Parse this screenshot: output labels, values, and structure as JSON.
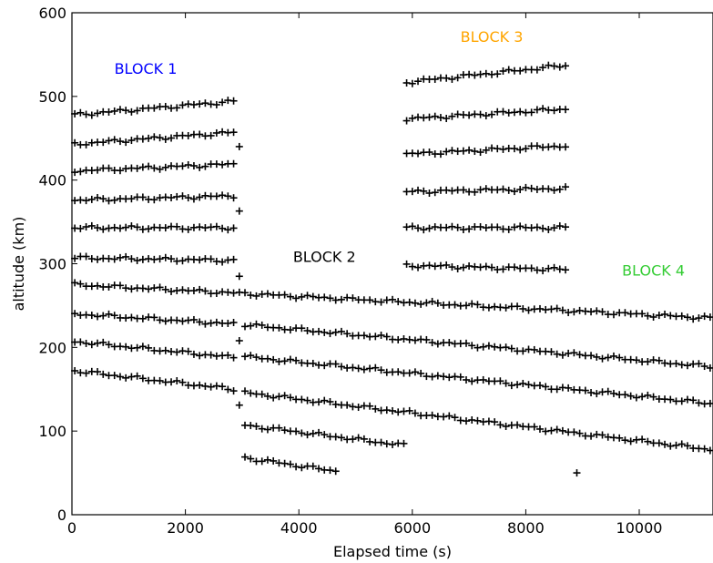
{
  "chart_data": {
    "type": "scatter",
    "title": "",
    "xlabel": "Elapsed time (s)",
    "ylabel": "altitude (km)",
    "xlim": [
      0,
      11300
    ],
    "ylim": [
      0,
      600
    ],
    "x_ticks": [
      0,
      2000,
      4000,
      6000,
      8000,
      10000
    ],
    "x_tick_labels": [
      "0",
      "2000",
      "4000",
      "6000",
      "8000",
      "10000"
    ],
    "y_ticks": [
      0,
      100,
      200,
      300,
      400,
      500,
      600
    ],
    "y_tick_labels": [
      "0",
      "100",
      "200",
      "300",
      "400",
      "500",
      "600"
    ],
    "grid": false,
    "marker": "+",
    "marker_color": "#000000",
    "annotations": [
      {
        "text": "BLOCK 1",
        "x": 1300,
        "y": 527,
        "color": "#0000ff"
      },
      {
        "text": "BLOCK 2",
        "x": 4450,
        "y": 302,
        "color": "#000000"
      },
      {
        "text": "BLOCK 3",
        "x": 7400,
        "y": 565,
        "color": "#ffa500"
      },
      {
        "text": "BLOCK 4",
        "x": 10250,
        "y": 286,
        "color": "#33cc33"
      }
    ],
    "series": [
      {
        "x_start": 50,
        "x_end": 2900,
        "y_start": 478,
        "y_end": 494
      },
      {
        "x_start": 50,
        "x_end": 2900,
        "y_start": 443,
        "y_end": 457
      },
      {
        "x_start": 50,
        "x_end": 2900,
        "y_start": 411,
        "y_end": 419
      },
      {
        "x_start": 50,
        "x_end": 2900,
        "y_start": 376,
        "y_end": 381
      },
      {
        "x_start": 50,
        "x_end": 2900,
        "y_start": 343,
        "y_end": 343
      },
      {
        "x_start": 50,
        "x_end": 2900,
        "y_start": 307,
        "y_end": 304
      },
      {
        "x_start": 50,
        "x_end": 11300,
        "y_start": 275,
        "y_end": 235
      },
      {
        "x_start": 50,
        "x_end": 2900,
        "y_start": 240,
        "y_end": 228
      },
      {
        "x_start": 50,
        "x_end": 2900,
        "y_start": 207,
        "y_end": 188
      },
      {
        "x_start": 50,
        "x_end": 2900,
        "y_start": 172,
        "y_end": 150
      },
      {
        "x_start": 3050,
        "x_end": 11300,
        "y_start": 227,
        "y_end": 177
      },
      {
        "x_start": 3050,
        "x_end": 11300,
        "y_start": 189,
        "y_end": 133
      },
      {
        "x_start": 3050,
        "x_end": 11300,
        "y_start": 146,
        "y_end": 78
      },
      {
        "x_start": 3050,
        "x_end": 5850,
        "y_start": 107,
        "y_end": 83
      },
      {
        "x_start": 3050,
        "x_end": 4600,
        "y_start": 68,
        "y_end": 53
      },
      {
        "x_start": 5900,
        "x_end": 8750,
        "y_start": 517,
        "y_end": 537
      },
      {
        "x_start": 5900,
        "x_end": 8750,
        "y_start": 473,
        "y_end": 485
      },
      {
        "x_start": 5900,
        "x_end": 8750,
        "y_start": 431,
        "y_end": 441
      },
      {
        "x_start": 5900,
        "x_end": 8750,
        "y_start": 386,
        "y_end": 390
      },
      {
        "x_start": 5900,
        "x_end": 8750,
        "y_start": 343,
        "y_end": 343
      },
      {
        "x_start": 5900,
        "x_end": 8750,
        "y_start": 298,
        "y_end": 293
      }
    ],
    "isolated_points": [
      {
        "x": 2950,
        "y": 440
      },
      {
        "x": 2950,
        "y": 363
      },
      {
        "x": 2950,
        "y": 285
      },
      {
        "x": 2950,
        "y": 208
      },
      {
        "x": 2950,
        "y": 131
      },
      {
        "x": 4650,
        "y": 52
      },
      {
        "x": 8900,
        "y": 50
      }
    ]
  }
}
